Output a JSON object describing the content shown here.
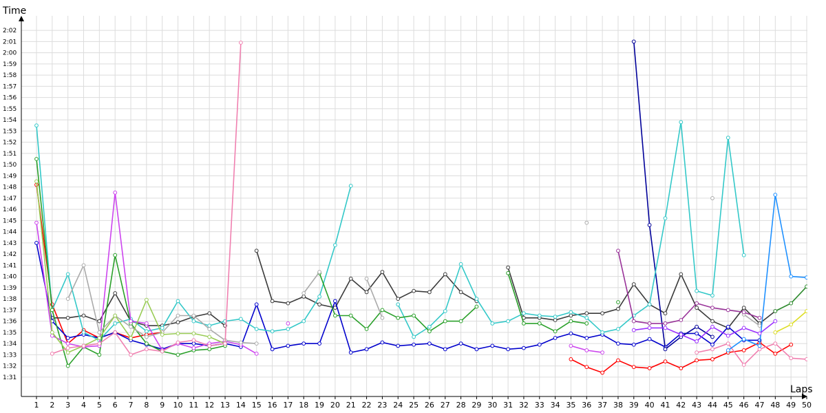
{
  "chart_data": {
    "type": "line",
    "xlabel": "Laps",
    "ylabel": "Time",
    "grid": true,
    "legend": "none",
    "x": [
      1,
      2,
      3,
      4,
      5,
      6,
      7,
      8,
      9,
      10,
      11,
      12,
      13,
      14,
      15,
      16,
      17,
      18,
      19,
      20,
      21,
      22,
      23,
      24,
      25,
      26,
      27,
      28,
      29,
      30,
      31,
      32,
      33,
      34,
      35,
      36,
      37,
      38,
      39,
      40,
      41,
      42,
      43,
      44,
      45,
      46,
      47,
      48,
      49,
      50
    ],
    "x_tick_labels": [
      "1",
      "2",
      "3",
      "4",
      "5",
      "6",
      "7",
      "8",
      "9",
      "10",
      "11",
      "12",
      "13",
      "14",
      "15",
      "16",
      "17",
      "18",
      "19",
      "20",
      "21",
      "22",
      "23",
      "24",
      "25",
      "26",
      "27",
      "28",
      "29",
      "30",
      "31",
      "32",
      "33",
      "34",
      "35",
      "36",
      "37",
      "38",
      "39",
      "40",
      "41",
      "42",
      "43",
      "44",
      "45",
      "46",
      "47",
      "48",
      "49",
      "50"
    ],
    "y_unit": "seconds",
    "ylim": [
      90.5,
      122.5
    ],
    "y_tick_labels": [
      "1:31",
      "1:32",
      "1:33",
      "1:34",
      "1:35",
      "1:36",
      "1:37",
      "1:38",
      "1:39",
      "1:40",
      "1:41",
      "1:42",
      "1:43",
      "1:44",
      "1:45",
      "1:46",
      "1:47",
      "1:48",
      "1:49",
      "1:50",
      "1:51",
      "1:52",
      "1:53",
      "1:54",
      "1:55",
      "1:56",
      "1:57",
      "1:58",
      "1:59",
      "2:00",
      "2:01",
      "2:02"
    ],
    "series": [
      {
        "color": "#ff0000",
        "values": [
          108.2,
          97.5,
          94.0,
          95.2,
          94.5,
          95.0,
          94.5,
          94.8,
          95.0,
          null,
          null,
          null,
          null,
          null,
          null,
          null,
          null,
          null,
          null,
          null,
          null,
          null,
          null,
          null,
          null,
          null,
          null,
          null,
          null,
          null,
          null,
          null,
          null,
          null,
          null,
          null,
          null,
          null,
          null,
          null,
          null,
          null,
          null,
          null,
          null,
          null,
          null,
          null,
          null,
          null
        ]
      },
      {
        "color": "#ff0000",
        "values": [
          null,
          null,
          null,
          null,
          null,
          null,
          null,
          null,
          null,
          null,
          null,
          null,
          null,
          null,
          null,
          null,
          null,
          null,
          null,
          null,
          null,
          null,
          null,
          null,
          null,
          null,
          null,
          null,
          null,
          null,
          null,
          null,
          null,
          null,
          92.6,
          91.9,
          91.4,
          92.5,
          91.9,
          91.8,
          92.4,
          91.8,
          92.5,
          92.6,
          93.2,
          93.4,
          94.1,
          93.1,
          93.9,
          null
        ]
      },
      {
        "color": "#3a3a3a",
        "values": [
          null,
          96.3,
          96.3,
          96.5,
          96.0,
          98.5,
          96.0,
          95.6,
          95.6,
          95.9,
          96.4,
          96.7,
          95.6,
          null,
          102.3,
          97.8,
          97.6,
          98.2,
          97.5,
          97.2,
          99.8,
          98.6,
          100.4,
          98.0,
          98.7,
          98.6,
          100.2,
          98.6,
          97.8,
          null,
          100.8,
          96.3,
          96.3,
          96.1,
          96.5,
          96.7,
          96.7,
          97.1,
          99.3,
          97.5,
          96.7,
          100.2,
          97.2,
          96.0,
          95.4,
          97.2,
          95.8,
          96.9,
          null,
          null
        ]
      },
      {
        "color": "#0000cc",
        "values": [
          103.0,
          96.0,
          94.5,
          94.8,
          94.5,
          95.0,
          94.3,
          93.9,
          93.5,
          94.0,
          94.0,
          93.8,
          94.0,
          93.7,
          97.5,
          93.5,
          93.8,
          94.0,
          94.0,
          97.8,
          93.2,
          93.5,
          94.1,
          93.8,
          93.9,
          94.0,
          93.5,
          94.0,
          93.5,
          93.8,
          93.5,
          93.6,
          93.9,
          94.5,
          94.9,
          94.5,
          94.8,
          94.0,
          93.9,
          94.4,
          93.7,
          94.9,
          94.9,
          93.9,
          95.5,
          94.3,
          94.3,
          null,
          null,
          null
        ]
      },
      {
        "color": "#000099",
        "values": [
          null,
          null,
          null,
          null,
          null,
          null,
          null,
          null,
          null,
          null,
          null,
          null,
          null,
          null,
          null,
          null,
          null,
          null,
          null,
          null,
          null,
          null,
          null,
          null,
          null,
          null,
          null,
          null,
          null,
          null,
          null,
          null,
          null,
          null,
          null,
          null,
          null,
          null,
          121.0,
          104.6,
          93.5,
          94.6,
          95.5,
          94.6,
          null,
          null,
          null,
          null,
          null,
          null
        ]
      },
      {
        "color": "#33c8c8",
        "values": [
          113.5,
          97.0,
          100.2,
          95.0,
          94.3,
          95.8,
          96.2,
          95.1,
          95.4,
          97.8,
          96.0,
          95.6,
          96.0,
          96.2,
          95.3,
          95.1,
          95.3,
          96.0,
          98.2,
          102.8,
          108.1,
          null,
          null,
          97.5,
          94.6,
          95.5,
          96.9,
          101.1,
          98.0,
          95.8,
          96.0,
          96.7,
          96.5,
          96.4,
          96.8,
          96.3,
          95.0,
          95.3,
          96.5,
          97.5,
          105.2,
          113.8,
          98.7,
          98.3,
          112.4,
          101.9,
          null,
          null,
          null,
          null
        ]
      },
      {
        "color": "#2aa02a",
        "values": [
          110.5,
          97.0,
          92.0,
          93.7,
          93.0,
          101.9,
          95.8,
          94.0,
          93.3,
          93.0,
          93.4,
          93.5,
          93.8,
          null,
          null,
          null,
          null,
          null,
          100.3,
          96.5,
          96.5,
          95.3,
          97.0,
          96.3,
          96.5,
          95.1,
          96.0,
          96.0,
          97.3,
          null,
          100.3,
          95.8,
          95.8,
          95.1,
          96.0,
          95.8,
          null,
          97.7,
          null,
          null,
          null,
          null,
          null,
          null,
          null,
          null,
          null,
          null,
          null,
          null
        ]
      },
      {
        "color": "#cc44ee",
        "values": [
          104.8,
          94.7,
          94.0,
          93.7,
          93.8,
          107.5,
          96.0,
          95.8,
          93.4,
          94.0,
          93.6,
          94.0,
          94.2,
          93.9,
          93.1,
          null,
          95.8,
          null,
          null,
          null,
          null,
          null,
          null,
          null,
          null,
          null,
          null,
          null,
          null,
          null,
          null,
          null,
          null,
          null,
          93.8,
          93.4,
          93.2,
          null,
          null,
          null,
          null,
          null,
          null,
          null,
          null,
          null,
          null,
          null,
          null,
          null
        ]
      },
      {
        "color": "#aaaaaa",
        "values": [
          null,
          null,
          98.0,
          101.0,
          95.0,
          96.5,
          95.5,
          94.6,
          95.0,
          96.5,
          96.5,
          95.3,
          94.3,
          94.1,
          94.0,
          null,
          null,
          98.5,
          100.4,
          null,
          null,
          99.8,
          96.3,
          null,
          null,
          null,
          null,
          null,
          null,
          null,
          null,
          null,
          null,
          null,
          null,
          104.8,
          null,
          null,
          null,
          null,
          null,
          null,
          null,
          107.0,
          null,
          96.6,
          95.6,
          null,
          null,
          null
        ]
      },
      {
        "color": "#99cc55",
        "values": [
          108.5,
          95.0,
          93.2,
          93.8,
          94.5,
          96.5,
          94.5,
          97.9,
          94.8,
          94.9,
          94.9,
          94.6,
          94.0,
          null,
          null,
          null,
          null,
          null,
          null,
          null,
          null,
          null,
          null,
          null,
          null,
          null,
          null,
          null,
          null,
          null,
          null,
          null,
          null,
          null,
          null,
          null,
          null,
          null,
          null,
          null,
          null,
          null,
          null,
          null,
          null,
          null,
          null,
          null,
          null,
          null
        ]
      },
      {
        "color": "#f080b0",
        "values": [
          null,
          93.1,
          93.6,
          93.8,
          94.0,
          95.0,
          93.0,
          93.5,
          93.3,
          94.1,
          94.3,
          93.8,
          94.0,
          120.9,
          null,
          null,
          null,
          null,
          null,
          null,
          null,
          null,
          null,
          null,
          null,
          null,
          null,
          null,
          null,
          null,
          null,
          null,
          null,
          null,
          null,
          null,
          null,
          null,
          null,
          null,
          null,
          null,
          93.2,
          93.5,
          94.0,
          92.1,
          93.5,
          94.0,
          92.7,
          92.6
        ]
      },
      {
        "color": "#1e90ff",
        "values": [
          null,
          null,
          null,
          null,
          null,
          null,
          null,
          null,
          null,
          null,
          null,
          null,
          null,
          null,
          null,
          null,
          null,
          null,
          null,
          null,
          null,
          null,
          null,
          null,
          null,
          null,
          null,
          null,
          null,
          null,
          null,
          null,
          null,
          null,
          null,
          null,
          null,
          null,
          null,
          null,
          null,
          null,
          null,
          null,
          93.4,
          94.4,
          93.8,
          107.3,
          100.0,
          99.9
        ]
      },
      {
        "color": "#9b30ff",
        "values": [
          null,
          null,
          null,
          null,
          null,
          null,
          null,
          null,
          null,
          null,
          null,
          null,
          null,
          null,
          null,
          null,
          null,
          null,
          null,
          null,
          null,
          null,
          null,
          null,
          null,
          null,
          null,
          null,
          null,
          null,
          null,
          null,
          null,
          null,
          null,
          null,
          null,
          null,
          95.2,
          95.4,
          95.4,
          94.8,
          94.2,
          95.5,
          94.7,
          95.4,
          94.9,
          96.0,
          null,
          null
        ]
      },
      {
        "color": "#993399",
        "values": [
          null,
          null,
          null,
          null,
          null,
          null,
          null,
          null,
          null,
          null,
          null,
          null,
          null,
          null,
          null,
          null,
          null,
          null,
          null,
          null,
          null,
          null,
          null,
          null,
          null,
          null,
          null,
          null,
          null,
          null,
          null,
          null,
          null,
          null,
          null,
          null,
          null,
          102.3,
          96.0,
          95.8,
          95.8,
          96.1,
          97.6,
          97.2,
          97.0,
          96.8,
          96.3,
          null,
          null,
          null
        ]
      },
      {
        "color": "#dddd22",
        "values": [
          null,
          null,
          null,
          null,
          null,
          null,
          null,
          null,
          null,
          null,
          null,
          null,
          null,
          null,
          null,
          null,
          null,
          null,
          null,
          null,
          null,
          null,
          null,
          null,
          null,
          null,
          null,
          null,
          null,
          null,
          null,
          null,
          null,
          null,
          null,
          null,
          null,
          null,
          null,
          null,
          null,
          null,
          null,
          null,
          null,
          null,
          null,
          95.0,
          95.7,
          96.9
        ]
      },
      {
        "color": "#2e8b2e",
        "values": [
          null,
          null,
          null,
          null,
          null,
          null,
          null,
          null,
          null,
          null,
          null,
          null,
          null,
          null,
          null,
          null,
          null,
          null,
          null,
          null,
          null,
          null,
          null,
          null,
          null,
          null,
          null,
          null,
          null,
          null,
          null,
          null,
          null,
          null,
          null,
          null,
          null,
          null,
          null,
          null,
          null,
          null,
          null,
          null,
          null,
          null,
          null,
          96.9,
          97.6,
          99.1
        ]
      }
    ]
  }
}
